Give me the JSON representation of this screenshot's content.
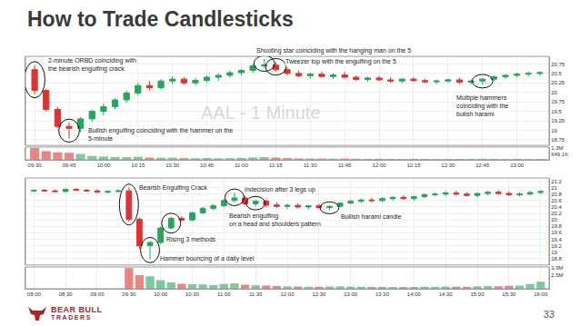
{
  "title": "How to Trade Candlesticks",
  "page_number": 33,
  "footer_logo": [
    "BEAR BULL",
    "TRADERS"
  ],
  "chart_data": [
    {
      "type": "candlestick",
      "title": "AAL - 1 Minute",
      "categories": [
        "09:30",
        null,
        null,
        "09:45",
        null,
        null,
        "10:00",
        null,
        null,
        "10:15",
        null,
        null,
        "10:30",
        null,
        null,
        "10:45",
        null,
        null,
        "11:00",
        null,
        null,
        "11:15",
        null,
        null,
        "11:30",
        null,
        null,
        "11:45",
        null,
        null,
        "12:00",
        null,
        null,
        "12:15",
        null,
        null,
        "12:30",
        null,
        null,
        "12:45",
        null,
        null,
        "13:00",
        null,
        null
      ],
      "open": [
        20.6,
        20.05,
        19.55,
        19.1,
        19.05,
        19.3,
        19.5,
        19.62,
        19.8,
        19.98,
        20.18,
        20.12,
        20.3,
        20.35,
        20.25,
        20.32,
        20.4,
        20.45,
        20.52,
        20.58,
        20.7,
        20.72,
        20.6,
        20.5,
        20.44,
        20.48,
        20.42,
        20.46,
        20.4,
        20.34,
        20.38,
        20.33,
        20.3,
        20.35,
        20.31,
        20.28,
        20.3,
        20.33,
        20.27,
        20.3,
        20.35,
        20.41,
        20.45,
        20.48,
        20.5
      ],
      "high": [
        20.72,
        20.1,
        19.62,
        19.2,
        19.35,
        19.55,
        19.7,
        19.85,
        20.05,
        20.25,
        20.3,
        20.35,
        20.42,
        20.4,
        20.38,
        20.45,
        20.5,
        20.58,
        20.62,
        20.75,
        20.88,
        20.8,
        20.66,
        20.58,
        20.52,
        20.55,
        20.5,
        20.54,
        20.45,
        20.42,
        20.44,
        20.4,
        20.38,
        20.4,
        20.36,
        20.34,
        20.36,
        20.38,
        20.33,
        20.38,
        20.44,
        20.48,
        20.52,
        20.55,
        20.56
      ],
      "low": [
        19.95,
        19.5,
        19.05,
        18.78,
        18.95,
        19.22,
        19.4,
        19.55,
        19.72,
        19.92,
        20.05,
        20.08,
        20.22,
        20.2,
        20.18,
        20.26,
        20.3,
        20.38,
        20.44,
        20.52,
        20.65,
        20.55,
        20.45,
        20.4,
        20.36,
        20.4,
        20.35,
        20.38,
        20.3,
        20.28,
        20.3,
        20.25,
        20.24,
        20.28,
        20.24,
        20.22,
        20.25,
        20.22,
        20.2,
        20.21,
        20.3,
        20.36,
        20.4,
        20.42,
        20.44
      ],
      "close": [
        20.05,
        19.55,
        19.1,
        19.05,
        19.3,
        19.5,
        19.62,
        19.8,
        19.98,
        20.18,
        20.12,
        20.3,
        20.35,
        20.25,
        20.32,
        20.4,
        20.45,
        20.52,
        20.58,
        20.7,
        20.72,
        20.6,
        20.5,
        20.44,
        20.48,
        20.42,
        20.46,
        20.4,
        20.34,
        20.38,
        20.33,
        20.3,
        20.35,
        20.31,
        20.28,
        20.3,
        20.33,
        20.27,
        20.3,
        20.35,
        20.41,
        20.45,
        20.48,
        20.5,
        20.52
      ],
      "volume": [
        1300000,
        950000,
        820000,
        760000,
        640000,
        420000,
        350000,
        300000,
        280000,
        320000,
        240000,
        220000,
        230000,
        180000,
        170000,
        190000,
        160000,
        170000,
        200000,
        260000,
        300000,
        240000,
        180000,
        150000,
        140000,
        130000,
        120000,
        130000,
        110000,
        100000,
        110000,
        95000,
        90000,
        100000,
        85000,
        80000,
        90000,
        85000,
        100000,
        110000,
        95000,
        90000,
        100000,
        85000,
        80000
      ],
      "ylim": [
        18.6,
        20.95
      ],
      "yticks": [
        18.75,
        19,
        19.25,
        19.5,
        19.75,
        20,
        20.25,
        20.5,
        20.75
      ],
      "y2lim": [
        0,
        1400000
      ],
      "y2ticks": [
        {
          "value": 649100,
          "label": "649.1K"
        },
        {
          "value": 1300000,
          "label": "1.3M"
        }
      ],
      "grid": true,
      "annotations": [
        {
          "lines": [
            "2-minute ORBD coinciding with",
            "the bearish engulfing crack"
          ],
          "at": 0
        },
        {
          "lines": [
            "Bullish engulfing coinciding with the hammer on the",
            "5-minute"
          ],
          "at": 3
        },
        {
          "lines": [
            "Shooting star coinciding with the hanging man on the 5"
          ],
          "at": 20
        },
        {
          "lines": [
            "Tweezer top with the engulfing on the 5"
          ],
          "at": 21
        },
        {
          "lines": [
            "Multiple hammers",
            "coinciding with the",
            "bulish harami"
          ],
          "at": 39
        }
      ]
    },
    {
      "type": "candlestick",
      "categories": [
        "08:00",
        null,
        null,
        "08:30",
        null,
        null,
        "09:00",
        null,
        null,
        "09:30",
        null,
        null,
        "10:00",
        null,
        null,
        "10:30",
        null,
        null,
        "11:00",
        null,
        null,
        "11:30",
        null,
        null,
        "12:00",
        null,
        null,
        "12:30",
        null,
        null,
        "13:00",
        null,
        null,
        "13:30",
        null,
        null,
        "14:00",
        null,
        null,
        "14:30",
        null,
        null,
        "15:00",
        null,
        null,
        "15:30",
        null,
        null,
        "16:00"
      ],
      "open": [
        20.9,
        20.92,
        20.9,
        20.88,
        20.95,
        20.92,
        20.9,
        20.86,
        20.88,
        20.9,
        20.02,
        19.2,
        19.3,
        19.75,
        20.05,
        20.0,
        20.22,
        20.36,
        20.44,
        20.6,
        20.68,
        20.5,
        20.58,
        20.46,
        20.42,
        20.45,
        20.4,
        20.44,
        20.38,
        20.42,
        20.52,
        20.58,
        20.62,
        20.6,
        20.66,
        20.7,
        20.66,
        20.72,
        20.78,
        20.8,
        20.84,
        20.8,
        20.76,
        20.82,
        20.86,
        20.82,
        20.78,
        20.8,
        20.85
      ],
      "high": [
        20.95,
        20.96,
        20.94,
        20.98,
        20.98,
        20.96,
        20.95,
        20.92,
        20.95,
        21.0,
        20.08,
        19.35,
        19.8,
        20.1,
        20.12,
        20.25,
        20.4,
        20.48,
        20.65,
        20.85,
        20.75,
        20.62,
        20.64,
        20.55,
        20.5,
        20.52,
        20.46,
        20.5,
        20.45,
        20.56,
        20.62,
        20.66,
        20.68,
        20.7,
        20.74,
        20.76,
        20.74,
        20.82,
        20.86,
        20.88,
        20.9,
        20.86,
        20.84,
        20.9,
        20.92,
        20.88,
        20.86,
        20.9,
        20.92
      ],
      "low": [
        20.86,
        20.88,
        20.86,
        20.85,
        20.9,
        20.88,
        20.84,
        20.82,
        20.85,
        19.95,
        19.1,
        18.78,
        19.25,
        19.7,
        19.95,
        19.96,
        20.18,
        20.3,
        20.4,
        20.55,
        20.45,
        20.42,
        20.4,
        20.38,
        20.34,
        20.36,
        20.32,
        20.36,
        20.3,
        20.4,
        20.48,
        20.52,
        20.55,
        20.56,
        20.6,
        20.62,
        20.6,
        20.68,
        20.72,
        20.74,
        20.76,
        20.72,
        20.7,
        20.76,
        20.78,
        20.74,
        20.72,
        20.76,
        20.8
      ],
      "close": [
        20.92,
        20.9,
        20.88,
        20.95,
        20.92,
        20.9,
        20.86,
        20.88,
        20.9,
        20.02,
        19.2,
        19.3,
        19.75,
        20.05,
        20.0,
        20.22,
        20.36,
        20.44,
        20.6,
        20.68,
        20.5,
        20.58,
        20.46,
        20.42,
        20.45,
        20.4,
        20.44,
        20.38,
        20.42,
        20.52,
        20.58,
        20.62,
        20.6,
        20.66,
        20.7,
        20.66,
        20.72,
        20.78,
        20.8,
        20.84,
        20.8,
        20.76,
        20.82,
        20.86,
        20.82,
        20.78,
        20.8,
        20.85,
        20.88
      ],
      "volume": [
        30000,
        25000,
        20000,
        40000,
        30000,
        25000,
        45000,
        50000,
        60000,
        3800000,
        2500000,
        2300000,
        1600000,
        1200000,
        900000,
        850000,
        800000,
        700000,
        900000,
        1000000,
        750000,
        650000,
        600000,
        500000,
        450000,
        420000,
        400000,
        380000,
        420000,
        450000,
        400000,
        380000,
        350000,
        360000,
        340000,
        320000,
        350000,
        400000,
        380000,
        420000,
        400000,
        380000,
        450000,
        500000,
        480000,
        550000,
        600000,
        900000,
        1300000
      ],
      "ylim": [
        18.6,
        21.3
      ],
      "yticks": [
        18.8,
        19,
        19.2,
        19.4,
        19.6,
        19.8,
        20,
        20.2,
        20.4,
        20.6,
        20.8,
        21,
        21.2
      ],
      "y2lim": [
        0,
        4000000
      ],
      "y2ticks": [
        {
          "value": 2500000,
          "label": "2.5M"
        },
        {
          "value": 3900000,
          "label": "3.9M"
        }
      ],
      "grid": true,
      "annotations": [
        {
          "lines": [
            "Bearish Engulfing Crack"
          ],
          "at": 9
        },
        {
          "lines": [
            "Indecision after 3 legs up"
          ],
          "at": 19
        },
        {
          "lines": [
            "Bearish engulfing",
            "on a head and shoulders pattern"
          ],
          "at": 21
        },
        {
          "lines": [
            "Bullish harami candle"
          ],
          "at": 28
        },
        {
          "lines": [
            "Rising 3 methods"
          ],
          "at": 13
        },
        {
          "lines": [
            "Hammer bouncing of a daily level"
          ],
          "at": 11
        }
      ]
    }
  ]
}
